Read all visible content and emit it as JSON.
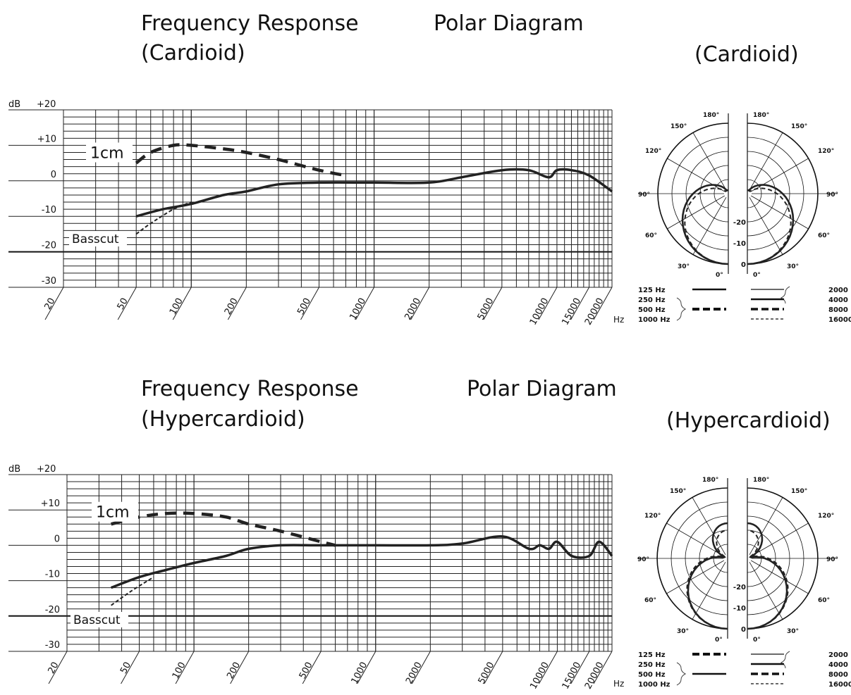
{
  "sections": [
    {
      "freq_title_1": "Frequency Response",
      "freq_title_2": "(Cardioid)",
      "polar_title": "Polar Diagram",
      "polar_subtitle": "(Cardioid)"
    },
    {
      "freq_title_1": "Frequency Response",
      "freq_title_2": "(Hypercardioid)",
      "polar_title": "Polar Diagram",
      "polar_subtitle": "(Hypercardioid)"
    }
  ],
  "chart_data": [
    {
      "type": "line",
      "title": "Frequency Response (Cardioid)",
      "x_scale": "log",
      "xlim": [
        20,
        20000
      ],
      "ylim": [
        -30,
        20
      ],
      "ylabel": "dB",
      "xunit": "Hz",
      "x_ticks": [
        "20",
        "50",
        "100",
        "200",
        "500",
        "1000",
        "2000",
        "5000",
        "10000",
        "15000",
        "20000"
      ],
      "y_ticks": [
        "+20",
        "+10",
        "0",
        "-10",
        "-20",
        "-30"
      ],
      "grid": true,
      "annotations": [
        "1cm",
        "Basscut"
      ],
      "series": [
        {
          "name": "",
          "style": "solid",
          "x": [
            50,
            70,
            100,
            150,
            200,
            300,
            500,
            1000,
            2000,
            3000,
            5000,
            7000,
            9000,
            10000,
            12000,
            15000,
            20000
          ],
          "y": [
            -10,
            -8,
            -6.5,
            -4,
            -3,
            -1,
            -0.5,
            -0.5,
            -0.5,
            1,
            3,
            3,
            1,
            3,
            3,
            1.5,
            -3
          ]
        },
        {
          "name": "1cm",
          "style": "dashed",
          "x": [
            50,
            60,
            80,
            100,
            150,
            200,
            300,
            500,
            700
          ],
          "y": [
            5,
            8,
            10,
            10,
            9,
            8,
            6,
            3,
            1.5
          ]
        },
        {
          "name": "Basscut",
          "style": "fine-dashed",
          "x": [
            50,
            60,
            80,
            100
          ],
          "y": [
            -15,
            -12,
            -8,
            -6
          ]
        }
      ]
    },
    {
      "type": "line",
      "title": "Frequency Response (Hypercardioid)",
      "x_scale": "log",
      "xlim": [
        20,
        20000
      ],
      "ylim": [
        -30,
        20
      ],
      "ylabel": "dB",
      "xunit": "Hz",
      "x_ticks": [
        "20",
        "50",
        "100",
        "200",
        "500",
        "1000",
        "2000",
        "5000",
        "10000",
        "15000",
        "20000"
      ],
      "y_ticks": [
        "+20",
        "+10",
        "0",
        "-10",
        "-20",
        "-30"
      ],
      "grid": true,
      "annotations": [
        "1cm",
        "Basscut"
      ],
      "series": [
        {
          "name": "",
          "style": "solid",
          "x": [
            35,
            50,
            70,
            100,
            150,
            200,
            300,
            500,
            1000,
            2000,
            3000,
            5000,
            7000,
            8000,
            9000,
            10000,
            12000,
            15000,
            17000,
            20000
          ],
          "y": [
            -12,
            -9,
            -7,
            -5,
            -3,
            -1,
            0,
            0,
            0,
            0,
            0.5,
            2.5,
            -1,
            0,
            -1,
            1,
            -3,
            -3,
            1,
            -3
          ]
        },
        {
          "name": "1cm",
          "style": "dashed",
          "x": [
            35,
            50,
            70,
            100,
            150,
            200,
            300,
            500,
            600
          ],
          "y": [
            6,
            8,
            9,
            9,
            8,
            6,
            4,
            1,
            0
          ]
        },
        {
          "name": "Basscut",
          "style": "fine-dashed",
          "x": [
            35,
            45,
            60
          ],
          "y": [
            -17,
            -13,
            -9
          ]
        }
      ]
    },
    {
      "type": "polar",
      "title": "Polar Diagram (Cardioid)",
      "angle_labels": [
        "180°",
        "180°",
        "150°",
        "150°",
        "120°",
        "120°",
        "90°",
        "90°",
        "60°",
        "60°",
        "30°",
        "30°",
        "0°",
        "0°"
      ],
      "radial_labels": [
        "-20",
        "-10",
        "0"
      ],
      "legend_left": [
        "125 Hz",
        "250 Hz",
        "500 Hz",
        "1000 Hz"
      ],
      "legend_right": [
        "2000 Hz",
        "4000 Hz",
        "8000 Hz",
        "16000 Hz"
      ]
    },
    {
      "type": "polar",
      "title": "Polar Diagram (Hypercardioid)",
      "angle_labels": [
        "180°",
        "180°",
        "150°",
        "150°",
        "120°",
        "120°",
        "90°",
        "90°",
        "60°",
        "60°",
        "30°",
        "30°",
        "0°",
        "0°"
      ],
      "radial_labels": [
        "-20",
        "-10",
        "0"
      ],
      "legend_left": [
        "125 Hz",
        "250 Hz",
        "500 Hz",
        "1000 Hz"
      ],
      "legend_right": [
        "2000 Hz",
        "4000 Hz",
        "8000 Hz",
        "16000 Hz"
      ]
    }
  ]
}
